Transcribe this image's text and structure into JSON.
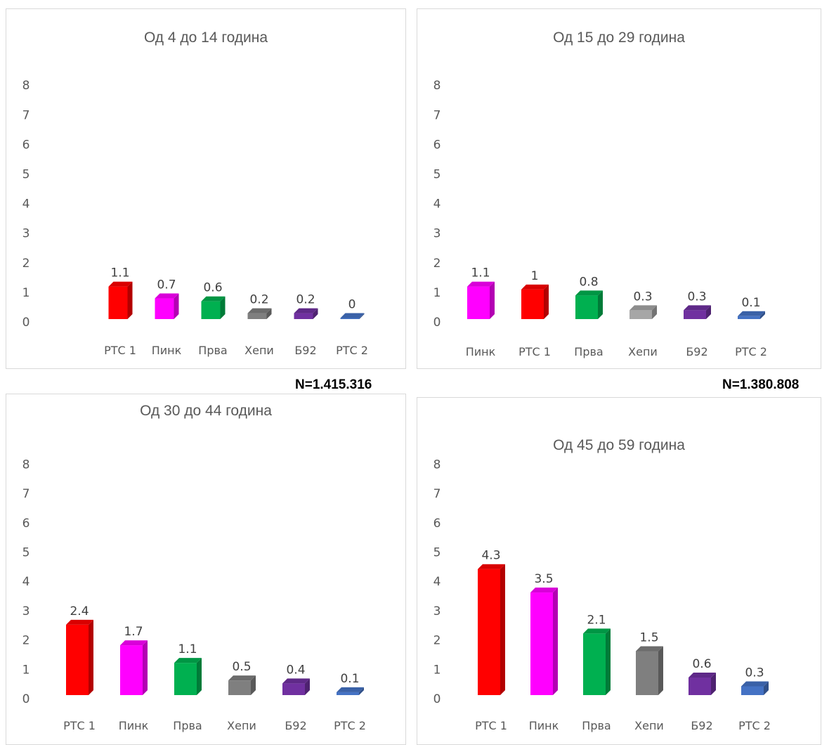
{
  "chart_data": [
    {
      "type": "bar",
      "title": "Од 4 до 14 година",
      "categories": [
        "РТС 1",
        "Пинк",
        "Прва",
        "Хепи",
        "Б92",
        "РТС 2"
      ],
      "values": [
        1.1,
        0.7,
        0.6,
        0.2,
        0.2,
        0
      ],
      "colors": [
        "#ff0000",
        "#ff00ff",
        "#00b050",
        "#7f7f7f",
        "#7030a0",
        "#4472c4"
      ],
      "y_ticks": [
        "0",
        "1",
        "2",
        "3",
        "4",
        "5",
        "6",
        "7",
        "8"
      ],
      "ylim": [
        0,
        8
      ],
      "grid": false,
      "legend": "none",
      "footnote": "N=1.415.316"
    },
    {
      "type": "bar",
      "title": "Од 15 до 29 година",
      "categories": [
        "Пинк",
        "РТС 1",
        "Прва",
        "Хепи",
        "Б92",
        "РТС 2"
      ],
      "values": [
        1.1,
        1,
        0.8,
        0.3,
        0.3,
        0.1
      ],
      "colors": [
        "#ff00ff",
        "#ff0000",
        "#00b050",
        "#a6a6a6",
        "#7030a0",
        "#4472c4"
      ],
      "y_ticks": [
        "0",
        "1",
        "2",
        "3",
        "4",
        "5",
        "6",
        "7",
        "8"
      ],
      "ylim": [
        0,
        8
      ],
      "grid": false,
      "legend": "none",
      "footnote": "N=1.380.808"
    },
    {
      "type": "bar",
      "title": "Од 30 до 44 година",
      "categories": [
        "РТС 1",
        "Пинк",
        "Прва",
        "Хепи",
        "Б92",
        "РТС 2"
      ],
      "values": [
        2.4,
        1.7,
        1.1,
        0.5,
        0.4,
        0.1
      ],
      "colors": [
        "#ff0000",
        "#ff00ff",
        "#00b050",
        "#7f7f7f",
        "#7030a0",
        "#4472c4"
      ],
      "y_ticks": [
        "0",
        "1",
        "2",
        "3",
        "4",
        "5",
        "6",
        "7",
        "8"
      ],
      "ylim": [
        0,
        8
      ],
      "grid": false,
      "legend": "none"
    },
    {
      "type": "bar",
      "title": "Од 45 до 59 година",
      "categories": [
        "РТС 1",
        "Пинк",
        "Прва",
        "Хепи",
        "Б92",
        "РТС 2"
      ],
      "values": [
        4.3,
        3.5,
        2.1,
        1.5,
        0.6,
        0.3
      ],
      "colors": [
        "#ff0000",
        "#ff00ff",
        "#00b050",
        "#7f7f7f",
        "#7030a0",
        "#4472c4"
      ],
      "y_ticks": [
        "0",
        "1",
        "2",
        "3",
        "4",
        "5",
        "6",
        "7",
        "8"
      ],
      "ylim": [
        0,
        8
      ],
      "grid": false,
      "legend": "none"
    }
  ]
}
